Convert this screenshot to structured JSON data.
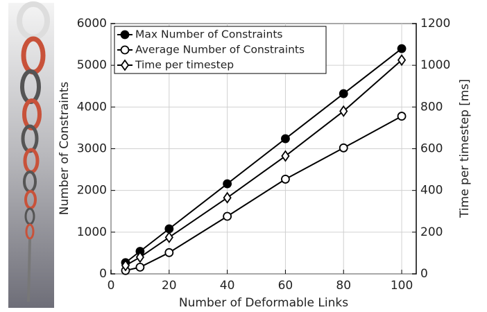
{
  "chart_data": {
    "type": "line",
    "x_label": "Number of Deformable Links",
    "y_label": "Number of Constraints",
    "y2_label": "Time per timestep [ms]",
    "x": [
      5,
      10,
      20,
      40,
      60,
      80,
      100
    ],
    "series": [
      {
        "name": "Max Number of Constraints",
        "color": "#000000",
        "marker": "filled-circle",
        "values": [
          270,
          540,
          1080,
          2160,
          3240,
          4320,
          5400
        ]
      },
      {
        "name": "Average Number of Constraints",
        "color": "#000000",
        "marker": "open-circle",
        "values": [
          80,
          160,
          510,
          1380,
          2270,
          3020,
          3780
        ]
      },
      {
        "name": "Time per timestep",
        "color": "#000000",
        "marker": "open-diamond",
        "axis": "y2",
        "values": [
          40,
          80,
          175,
          365,
          565,
          780,
          1025
        ]
      }
    ],
    "xlim": [
      0,
      105
    ],
    "xticks": [
      0,
      20,
      40,
      60,
      80,
      100
    ],
    "ylim": [
      0,
      6000
    ],
    "yticks": [
      0,
      1000,
      2000,
      3000,
      4000,
      5000,
      6000
    ],
    "y2lim": [
      0,
      1200
    ],
    "y2ticks": [
      0,
      200,
      400,
      600,
      800,
      1000,
      1200
    ],
    "grid": true,
    "legend": "upper left"
  }
}
